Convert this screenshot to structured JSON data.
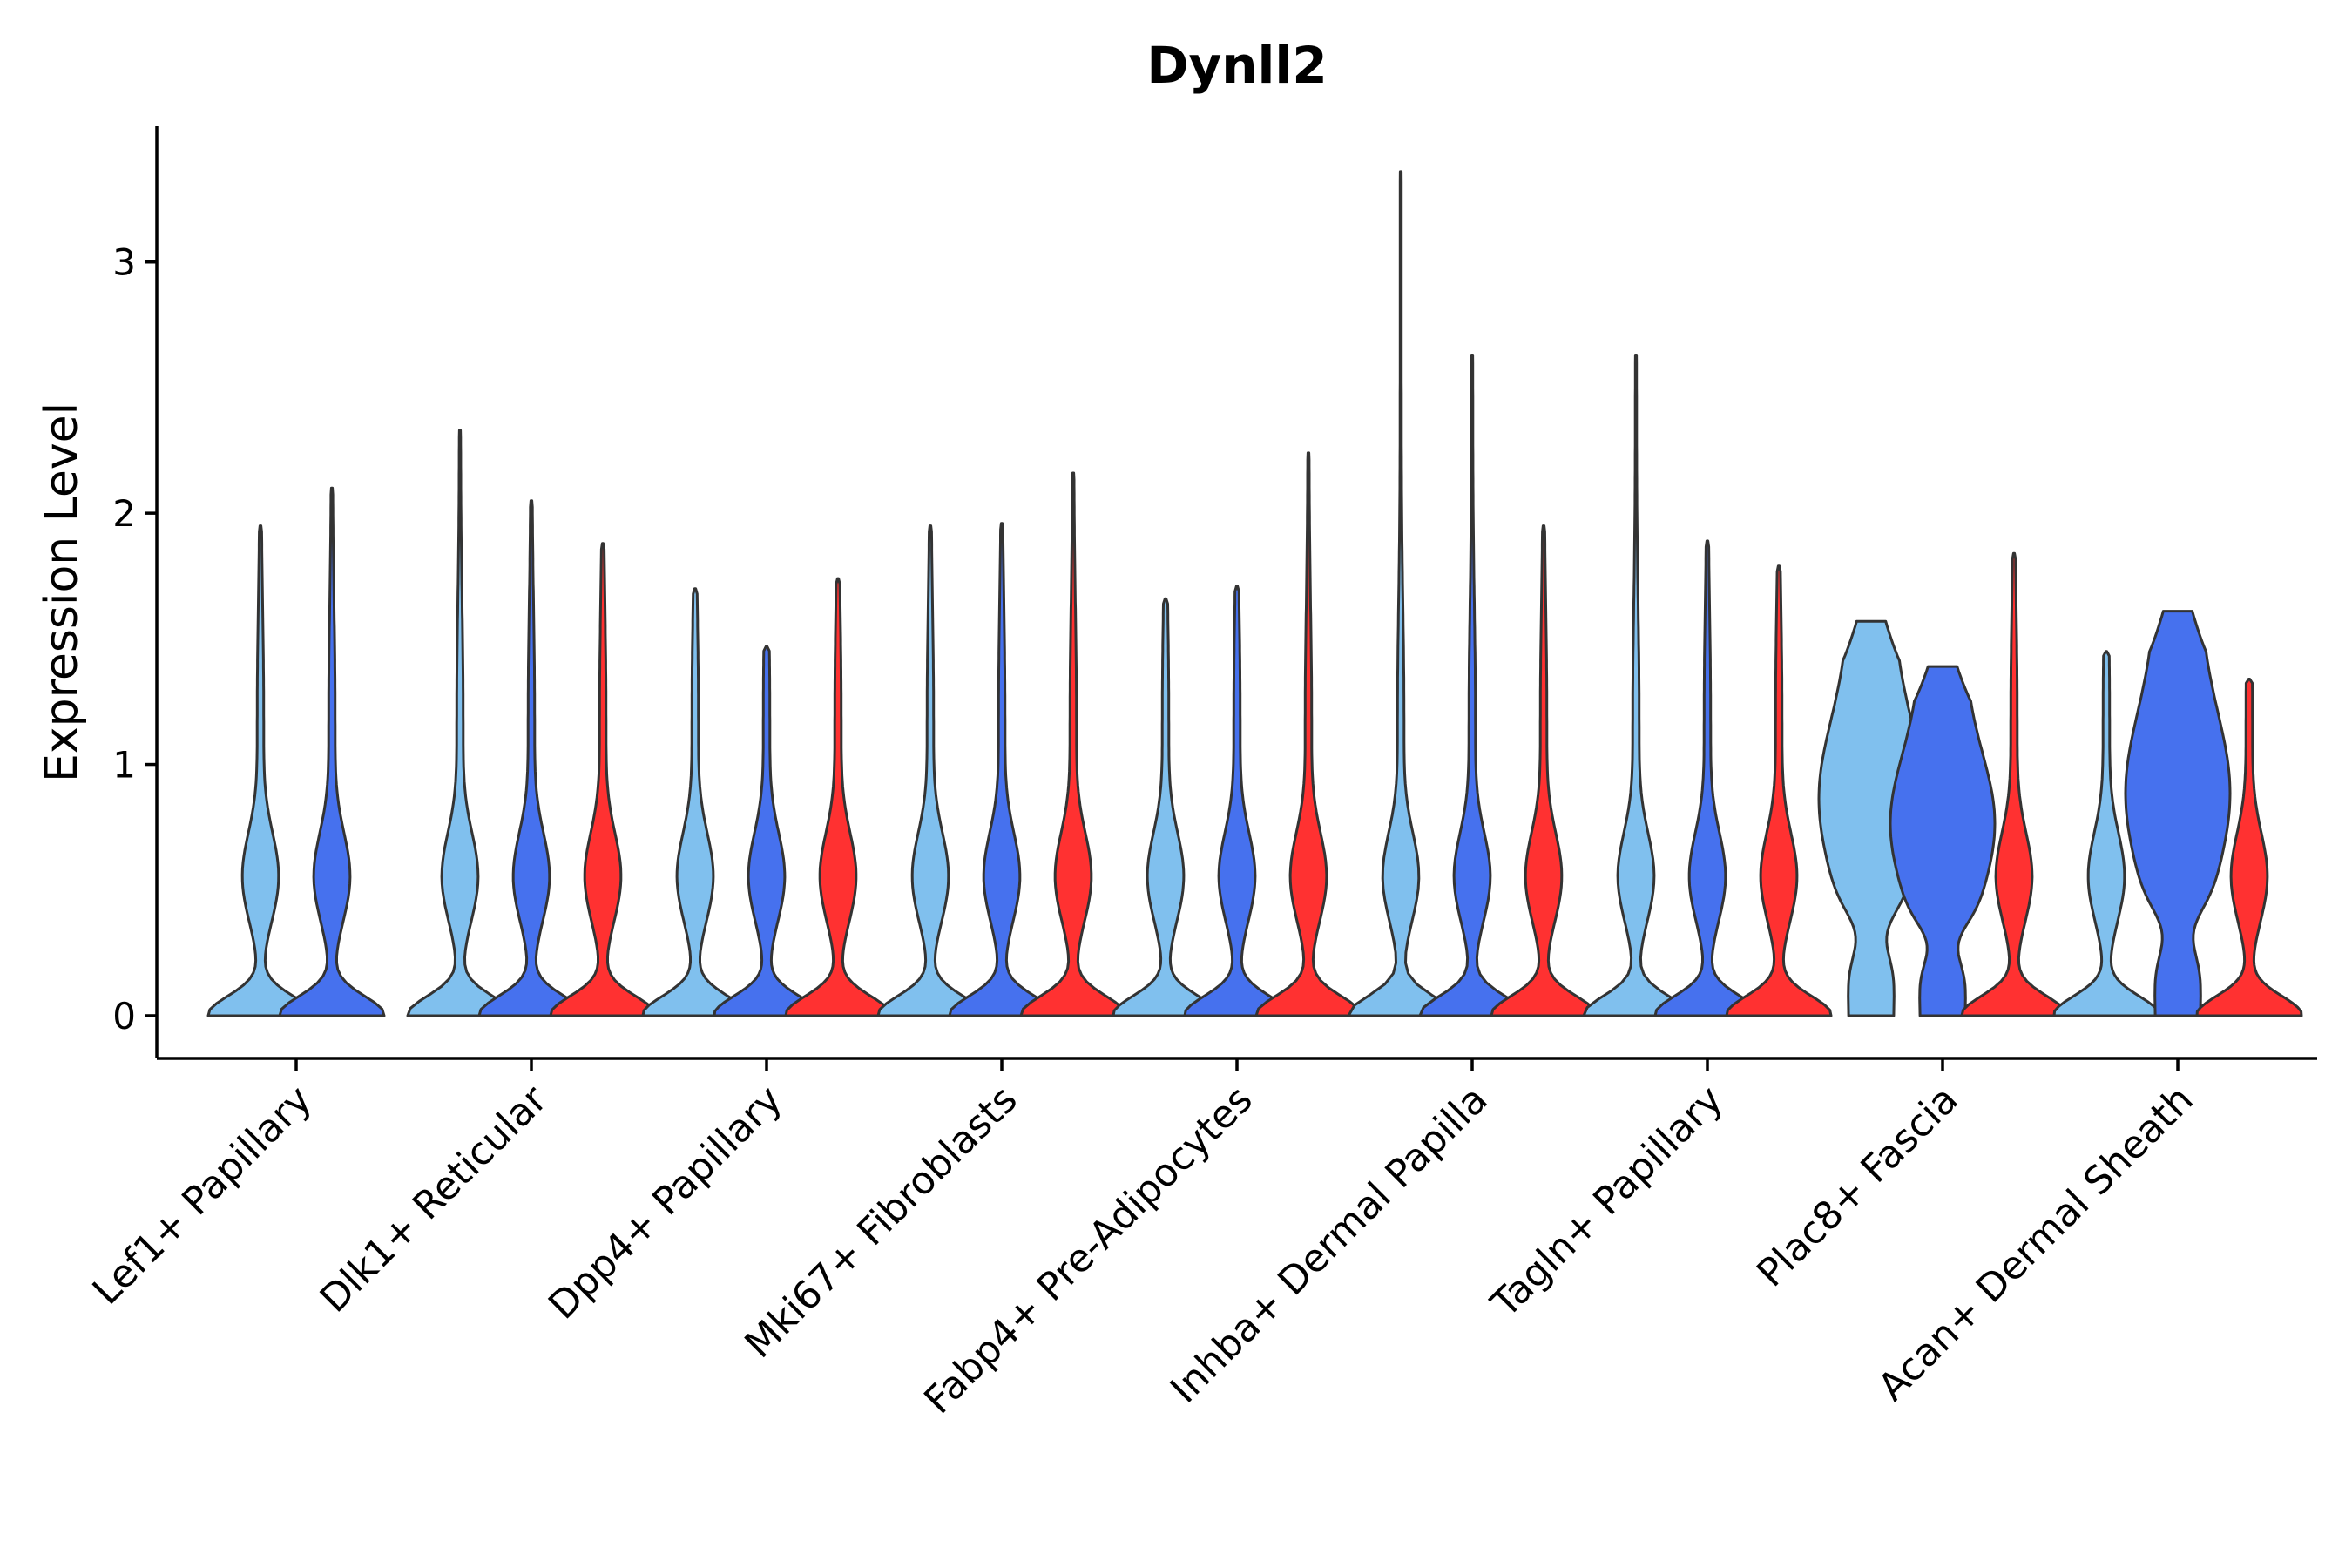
{
  "chart_data": {
    "type": "violin",
    "title": "Dynll2",
    "xlabel": "",
    "ylabel": "Expression Level",
    "ylim": [
      -0.17,
      3.54
    ],
    "yticks": [
      0,
      1,
      2,
      3
    ],
    "grid": false,
    "legend": "none",
    "series": [
      {
        "name": "group-1",
        "color": "#80C0EE"
      },
      {
        "name": "group-2",
        "color": "#4671EE"
      },
      {
        "name": "group-3",
        "color": "#FF3131"
      }
    ],
    "categories": [
      "Lef1+ Papillary",
      "Dlk1+ Reticular",
      "Dpp4+ Papillary",
      "Mki67+ Fibroblasts",
      "Fabp4+ Pre-Adipocytes",
      "Inhba+ Dermal Papilla",
      "Tagln+ Papillary",
      "Plac8+ Fascia",
      "Acan+ Dermal Sheath"
    ],
    "violins": [
      {
        "category": 0,
        "series": 0,
        "max": 1.95,
        "shape": "sharp"
      },
      {
        "category": 0,
        "series": 1,
        "max": 2.1,
        "shape": "sharp"
      },
      {
        "category": 1,
        "series": 0,
        "max": 2.33,
        "shape": "sharp"
      },
      {
        "category": 1,
        "series": 1,
        "max": 2.05,
        "shape": "sharp"
      },
      {
        "category": 1,
        "series": 2,
        "max": 1.88,
        "shape": "sharp"
      },
      {
        "category": 2,
        "series": 0,
        "max": 1.7,
        "shape": "sharp"
      },
      {
        "category": 2,
        "series": 1,
        "max": 1.47,
        "shape": "sharp"
      },
      {
        "category": 2,
        "series": 2,
        "max": 1.74,
        "shape": "sharp"
      },
      {
        "category": 3,
        "series": 0,
        "max": 1.95,
        "shape": "sharp"
      },
      {
        "category": 3,
        "series": 1,
        "max": 1.96,
        "shape": "sharp"
      },
      {
        "category": 3,
        "series": 2,
        "max": 2.16,
        "shape": "sharp"
      },
      {
        "category": 4,
        "series": 0,
        "max": 1.66,
        "shape": "sharp"
      },
      {
        "category": 4,
        "series": 1,
        "max": 1.71,
        "shape": "sharp"
      },
      {
        "category": 4,
        "series": 2,
        "max": 2.24,
        "shape": "sharp"
      },
      {
        "category": 5,
        "series": 0,
        "max": 3.36,
        "shape": "sharp"
      },
      {
        "category": 5,
        "series": 1,
        "max": 2.63,
        "shape": "sharp"
      },
      {
        "category": 5,
        "series": 2,
        "max": 1.95,
        "shape": "sharp"
      },
      {
        "category": 6,
        "series": 0,
        "max": 2.63,
        "shape": "sharp"
      },
      {
        "category": 6,
        "series": 1,
        "max": 1.89,
        "shape": "sharp"
      },
      {
        "category": 6,
        "series": 2,
        "max": 1.79,
        "shape": "sharp"
      },
      {
        "category": 7,
        "series": 0,
        "max": 1.57,
        "shape": "flat"
      },
      {
        "category": 7,
        "series": 1,
        "max": 1.39,
        "shape": "flat"
      },
      {
        "category": 7,
        "series": 2,
        "max": 1.84,
        "shape": "sharp"
      },
      {
        "category": 8,
        "series": 0,
        "max": 1.45,
        "shape": "sharp"
      },
      {
        "category": 8,
        "series": 1,
        "max": 1.61,
        "shape": "flat"
      },
      {
        "category": 8,
        "series": 2,
        "max": 1.34,
        "shape": "sharp"
      }
    ]
  }
}
